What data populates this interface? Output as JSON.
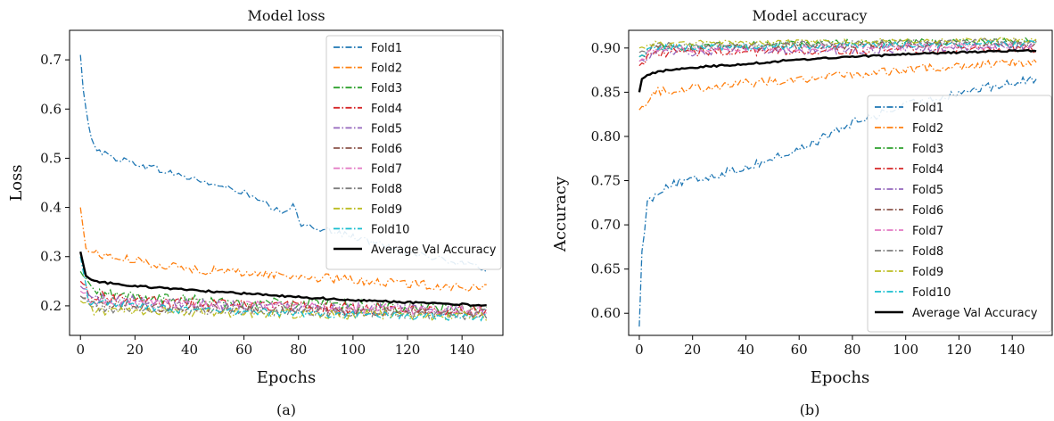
{
  "palette": {
    "Fold1": "#1f77b4",
    "Fold2": "#ff7f0e",
    "Fold3": "#2ca02c",
    "Fold4": "#d62728",
    "Fold5": "#9467bd",
    "Fold6": "#8c564b",
    "Fold7": "#e377c2",
    "Fold8": "#7f7f7f",
    "Fold9": "#bcbd22",
    "Fold10": "#17becf",
    "Average Val Accuracy": "#000000"
  },
  "chart_data": [
    {
      "type": "line",
      "caption": "(a)",
      "title": "Model loss",
      "xlabel": "Epochs",
      "ylabel": "Loss",
      "xlim": [
        -4,
        155
      ],
      "ylim": [
        0.14,
        0.76
      ],
      "xticks": [
        0,
        20,
        40,
        60,
        80,
        100,
        120,
        140
      ],
      "yticks": [
        0.2,
        0.3,
        0.4,
        0.5,
        0.6,
        0.7
      ],
      "legend_position": "upper right",
      "grid": false,
      "x_epochs": {
        "start": 0,
        "end": 149
      },
      "series": [
        {
          "name": "Fold1",
          "style": "dashdot",
          "anchors": [
            [
              0,
              0.71
            ],
            [
              1,
              0.64
            ],
            [
              3,
              0.56
            ],
            [
              6,
              0.52
            ],
            [
              10,
              0.505
            ],
            [
              20,
              0.49
            ],
            [
              40,
              0.46
            ],
            [
              60,
              0.43
            ],
            [
              75,
              0.385
            ],
            [
              78,
              0.41
            ],
            [
              80,
              0.37
            ],
            [
              100,
              0.34
            ],
            [
              120,
              0.31
            ],
            [
              140,
              0.285
            ],
            [
              149,
              0.275
            ]
          ],
          "noise": 0.007
        },
        {
          "name": "Fold2",
          "style": "dashdot",
          "anchors": [
            [
              0,
              0.4
            ],
            [
              2,
              0.315
            ],
            [
              10,
              0.3
            ],
            [
              40,
              0.275
            ],
            [
              80,
              0.26
            ],
            [
              120,
              0.245
            ],
            [
              149,
              0.235
            ]
          ],
          "noise": 0.009
        },
        {
          "name": "Fold3",
          "style": "dashdot",
          "anchors": [
            [
              0,
              0.27
            ],
            [
              5,
              0.225
            ],
            [
              40,
              0.21
            ],
            [
              100,
              0.2
            ],
            [
              149,
              0.19
            ]
          ],
          "noise": 0.012
        },
        {
          "name": "Fold4",
          "style": "dashdot",
          "anchors": [
            [
              0,
              0.25
            ],
            [
              5,
              0.22
            ],
            [
              40,
              0.205
            ],
            [
              100,
              0.195
            ],
            [
              149,
              0.19
            ]
          ],
          "noise": 0.011
        },
        {
          "name": "Fold5",
          "style": "dashdot",
          "anchors": [
            [
              0,
              0.24
            ],
            [
              5,
              0.215
            ],
            [
              40,
              0.205
            ],
            [
              100,
              0.195
            ],
            [
              149,
              0.188
            ]
          ],
          "noise": 0.011
        },
        {
          "name": "Fold6",
          "style": "dashdot",
          "anchors": [
            [
              0,
              0.22
            ],
            [
              5,
              0.2
            ],
            [
              60,
              0.195
            ],
            [
              149,
              0.185
            ]
          ],
          "noise": 0.01
        },
        {
          "name": "Fold7",
          "style": "dashdot",
          "anchors": [
            [
              0,
              0.23
            ],
            [
              5,
              0.21
            ],
            [
              60,
              0.2
            ],
            [
              149,
              0.19
            ]
          ],
          "noise": 0.01
        },
        {
          "name": "Fold8",
          "style": "dashdot",
          "anchors": [
            [
              0,
              0.22
            ],
            [
              5,
              0.195
            ],
            [
              60,
              0.19
            ],
            [
              149,
              0.18
            ]
          ],
          "noise": 0.009
        },
        {
          "name": "Fold9",
          "style": "dashdot",
          "anchors": [
            [
              0,
              0.21
            ],
            [
              5,
              0.19
            ],
            [
              60,
              0.185
            ],
            [
              149,
              0.178
            ]
          ],
          "noise": 0.009
        },
        {
          "name": "Fold10",
          "style": "dashdot",
          "anchors": [
            [
              0,
              0.3
            ],
            [
              3,
              0.21
            ],
            [
              40,
              0.19
            ],
            [
              149,
              0.175
            ]
          ],
          "noise": 0.008
        },
        {
          "name": "Average Val Accuracy",
          "style": "solid",
          "anchors": [
            [
              0,
              0.31
            ],
            [
              2,
              0.26
            ],
            [
              5,
              0.25
            ],
            [
              20,
              0.24
            ],
            [
              40,
              0.232
            ],
            [
              60,
              0.225
            ],
            [
              80,
              0.218
            ],
            [
              100,
              0.212
            ],
            [
              120,
              0.207
            ],
            [
              140,
              0.203
            ],
            [
              149,
              0.2
            ]
          ],
          "noise": 0.002
        }
      ]
    },
    {
      "type": "line",
      "caption": "(b)",
      "title": "Model accuracy",
      "xlabel": "Epochs",
      "ylabel": "Accuracy",
      "xlim": [
        -4,
        155
      ],
      "ylim": [
        0.575,
        0.92
      ],
      "xticks": [
        0,
        20,
        40,
        60,
        80,
        100,
        120,
        140
      ],
      "yticks": [
        0.6,
        0.65,
        0.7,
        0.75,
        0.8,
        0.85,
        0.9
      ],
      "legend_position": "lower right",
      "grid": false,
      "x_epochs": {
        "start": 0,
        "end": 149
      },
      "series": [
        {
          "name": "Fold1",
          "style": "dashdot",
          "anchors": [
            [
              0,
              0.585
            ],
            [
              1,
              0.67
            ],
            [
              3,
              0.725
            ],
            [
              10,
              0.745
            ],
            [
              20,
              0.75
            ],
            [
              40,
              0.765
            ],
            [
              60,
              0.785
            ],
            [
              80,
              0.815
            ],
            [
              100,
              0.835
            ],
            [
              120,
              0.85
            ],
            [
              140,
              0.86
            ],
            [
              149,
              0.865
            ]
          ],
          "noise": 0.005
        },
        {
          "name": "Fold2",
          "style": "dashdot",
          "anchors": [
            [
              0,
              0.83
            ],
            [
              5,
              0.85
            ],
            [
              20,
              0.855
            ],
            [
              40,
              0.86
            ],
            [
              60,
              0.865
            ],
            [
              80,
              0.87
            ],
            [
              100,
              0.875
            ],
            [
              120,
              0.88
            ],
            [
              149,
              0.885
            ]
          ],
          "noise": 0.005
        },
        {
          "name": "Fold3",
          "style": "dashdot",
          "anchors": [
            [
              0,
              0.89
            ],
            [
              5,
              0.9
            ],
            [
              60,
              0.905
            ],
            [
              149,
              0.908
            ]
          ],
          "noise": 0.004
        },
        {
          "name": "Fold4",
          "style": "dashdot",
          "anchors": [
            [
              0,
              0.88
            ],
            [
              5,
              0.895
            ],
            [
              149,
              0.9
            ]
          ],
          "noise": 0.005
        },
        {
          "name": "Fold5",
          "style": "dashdot",
          "anchors": [
            [
              0,
              0.885
            ],
            [
              5,
              0.895
            ],
            [
              149,
              0.902
            ]
          ],
          "noise": 0.005
        },
        {
          "name": "Fold6",
          "style": "dashdot",
          "anchors": [
            [
              0,
              0.89
            ],
            [
              5,
              0.9
            ],
            [
              149,
              0.905
            ]
          ],
          "noise": 0.004
        },
        {
          "name": "Fold7",
          "style": "dashdot",
          "anchors": [
            [
              0,
              0.885
            ],
            [
              5,
              0.898
            ],
            [
              149,
              0.903
            ]
          ],
          "noise": 0.004
        },
        {
          "name": "Fold8",
          "style": "dashdot",
          "anchors": [
            [
              0,
              0.895
            ],
            [
              5,
              0.903
            ],
            [
              149,
              0.908
            ]
          ],
          "noise": 0.003
        },
        {
          "name": "Fold9",
          "style": "dashdot",
          "anchors": [
            [
              0,
              0.9
            ],
            [
              5,
              0.905
            ],
            [
              149,
              0.91
            ]
          ],
          "noise": 0.003
        },
        {
          "name": "Fold10",
          "style": "dashdot",
          "anchors": [
            [
              0,
              0.89
            ],
            [
              5,
              0.9
            ],
            [
              149,
              0.905
            ]
          ],
          "noise": 0.004
        },
        {
          "name": "Average Val Accuracy",
          "style": "solid",
          "anchors": [
            [
              0,
              0.85
            ],
            [
              1,
              0.865
            ],
            [
              3,
              0.87
            ],
            [
              10,
              0.875
            ],
            [
              20,
              0.878
            ],
            [
              40,
              0.882
            ],
            [
              60,
              0.887
            ],
            [
              80,
              0.89
            ],
            [
              100,
              0.893
            ],
            [
              120,
              0.895
            ],
            [
              140,
              0.897
            ],
            [
              149,
              0.897
            ]
          ],
          "noise": 0.001
        }
      ]
    }
  ]
}
